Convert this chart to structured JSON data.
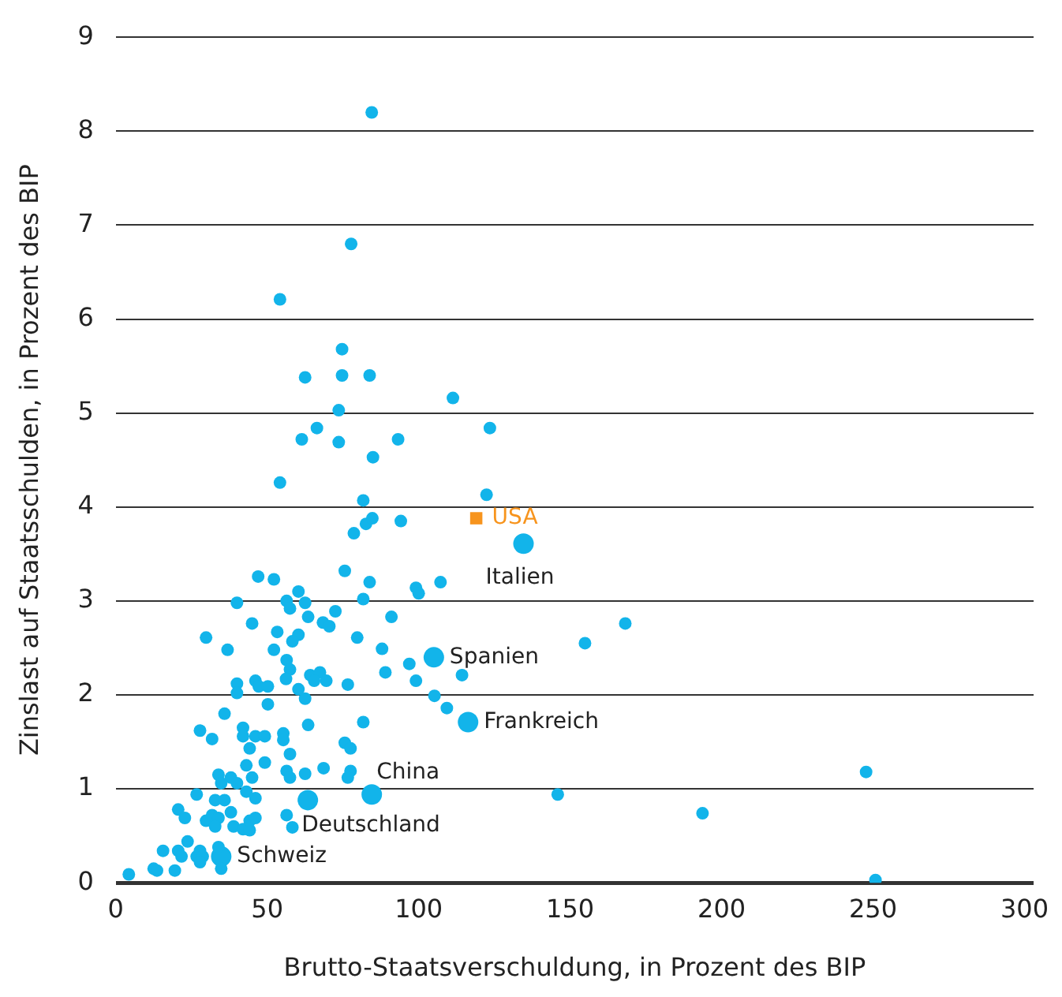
{
  "chart_data": {
    "type": "scatter",
    "xlabel": "Brutto-Staatsverschuldung, in Prozent des BIP",
    "ylabel": "Zinslast auf Staatsschulden, in Prozent des BIP",
    "xlim": [
      0,
      303
    ],
    "xticks": [
      0,
      50,
      100,
      150,
      200,
      250,
      300
    ],
    "ylim": [
      0,
      9
    ],
    "yticks": [
      0,
      1,
      2,
      3,
      4,
      5,
      6,
      7,
      8,
      9
    ],
    "grid": "y",
    "legend": false,
    "series": [
      {
        "color": "#12b4ea",
        "marker": "circle",
        "x": [
          84.5,
          77.7,
          54.2,
          74.7,
          62.5,
          74.7,
          83.8,
          111.3,
          73.6,
          123.5,
          66.4,
          61.4,
          73.6,
          93.2,
          84.9,
          54.2,
          81.7,
          122.4,
          82.6,
          84.7,
          94.1,
          78.6,
          75.6,
          47.0,
          52.2,
          83.8,
          99.1,
          100.0,
          107.2,
          60.3,
          40.0,
          56.4,
          57.5,
          62.5,
          81.7,
          63.5,
          72.5,
          91.0,
          45.0,
          68.4,
          70.5,
          53.3,
          60.3,
          58.3,
          79.7,
          29.8,
          154.9,
          36.9,
          52.2,
          87.9,
          56.4,
          57.5,
          96.9,
          89.0,
          114.3,
          64.2,
          67.4,
          65.5,
          69.5,
          56.2,
          40.0,
          40.0,
          46.1,
          47.2,
          50.2,
          76.6,
          99.1,
          60.3,
          62.5,
          105.2,
          50.2,
          109.3,
          35.9,
          81.7,
          63.5,
          27.8,
          42.0,
          42.0,
          31.8,
          46.1,
          49.2,
          55.3,
          55.3,
          75.6,
          77.5,
          44.2,
          57.5,
          43.1,
          49.2,
          68.6,
          56.4,
          57.5,
          62.5,
          77.5,
          76.6,
          33.9,
          38.0,
          34.8,
          40.0,
          45.0,
          26.7,
          43.1,
          46.1,
          32.8,
          35.9,
          145.9,
          20.6,
          22.8,
          38.0,
          56.4,
          29.8,
          31.8,
          33.9,
          32.8,
          38.9,
          42.0,
          44.2,
          44.2,
          46.1,
          58.3,
          23.7,
          15.6,
          20.6,
          21.7,
          27.8,
          26.7,
          28.7,
          27.8,
          33.9,
          34.8,
          4.3,
          12.5,
          13.6,
          19.5,
          168.2,
          247.7,
          193.7,
          250.8
        ],
        "values": [
          8.2,
          6.8,
          6.21,
          5.68,
          5.38,
          5.4,
          5.4,
          5.16,
          5.03,
          4.84,
          4.84,
          4.72,
          4.69,
          4.72,
          4.53,
          4.26,
          4.07,
          4.13,
          3.82,
          3.88,
          3.85,
          3.72,
          3.32,
          3.26,
          3.23,
          3.2,
          3.14,
          3.08,
          3.2,
          3.1,
          2.98,
          3.0,
          2.92,
          2.98,
          3.02,
          2.83,
          2.89,
          2.83,
          2.76,
          2.77,
          2.73,
          2.67,
          2.64,
          2.57,
          2.61,
          2.61,
          2.55,
          2.48,
          2.48,
          2.49,
          2.37,
          2.27,
          2.33,
          2.24,
          2.21,
          2.21,
          2.24,
          2.15,
          2.15,
          2.17,
          2.12,
          2.02,
          2.15,
          2.09,
          2.09,
          2.11,
          2.15,
          2.06,
          1.96,
          1.99,
          1.9,
          1.86,
          1.8,
          1.71,
          1.68,
          1.62,
          1.65,
          1.56,
          1.53,
          1.56,
          1.56,
          1.59,
          1.52,
          1.49,
          1.43,
          1.43,
          1.37,
          1.25,
          1.28,
          1.22,
          1.19,
          1.12,
          1.16,
          1.19,
          1.12,
          1.15,
          1.12,
          1.06,
          1.06,
          1.12,
          0.94,
          0.97,
          0.9,
          0.88,
          0.88,
          0.94,
          0.78,
          0.69,
          0.75,
          0.72,
          0.66,
          0.72,
          0.69,
          0.6,
          0.6,
          0.57,
          0.56,
          0.66,
          0.69,
          0.59,
          0.44,
          0.34,
          0.34,
          0.28,
          0.34,
          0.28,
          0.28,
          0.22,
          0.38,
          0.15,
          0.09,
          0.15,
          0.13,
          0.13,
          2.76,
          1.18,
          0.74,
          0.03
        ]
      },
      {
        "color": "#12b4ea",
        "marker": "circle",
        "x": [
          134.6,
          105.0,
          116.3,
          84.5,
          63.4,
          34.8
        ],
        "values": [
          3.61,
          2.4,
          1.71,
          0.94,
          0.88,
          0.28
        ]
      },
      {
        "color": "#f7941d",
        "marker": "square",
        "x": [
          119
        ],
        "values": [
          3.88
        ]
      }
    ],
    "annotations": [
      {
        "text": "USA",
        "x": 119,
        "y": 3.88
      },
      {
        "text": "Italien",
        "x": 134.6,
        "y": 3.61
      },
      {
        "text": "Spanien",
        "x": 105.0,
        "y": 2.4
      },
      {
        "text": "Frankreich",
        "x": 116.3,
        "y": 1.71
      },
      {
        "text": "China",
        "x": 84.5,
        "y": 0.94
      },
      {
        "text": "Deutschland",
        "x": 63.4,
        "y": 0.88
      },
      {
        "text": "Schweiz",
        "x": 34.8,
        "y": 0.28
      }
    ]
  }
}
